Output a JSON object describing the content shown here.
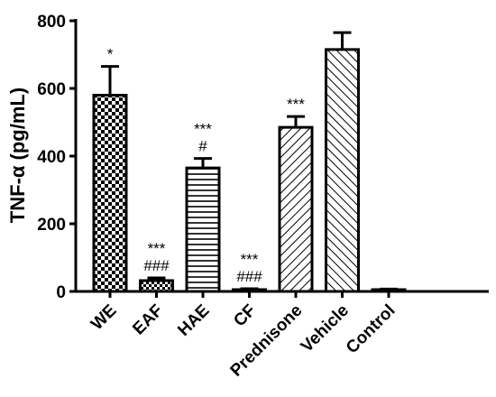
{
  "chart_data": {
    "type": "bar",
    "ylabel": "TNF-α (pg/mL)",
    "xlabel": "",
    "ylim": [
      0,
      800
    ],
    "yticks": [
      0,
      200,
      400,
      600,
      800
    ],
    "grid": false,
    "categories": [
      "WE",
      "EAF",
      "HAE",
      "CF",
      "Prednisone",
      "Vehicle",
      "Control"
    ],
    "values": [
      580,
      32,
      365,
      5,
      485,
      715,
      5
    ],
    "errors": [
      85,
      8,
      28,
      3,
      32,
      50,
      2
    ],
    "patterns": [
      "checker",
      "checker-fine",
      "horizontal",
      "dots",
      "diagonal-right",
      "diagonal-left",
      "solid"
    ],
    "annotations": [
      [
        "*"
      ],
      [
        "***",
        "###"
      ],
      [
        "***",
        "#"
      ],
      [
        "***",
        "###"
      ],
      [
        "***"
      ],
      [],
      []
    ]
  }
}
